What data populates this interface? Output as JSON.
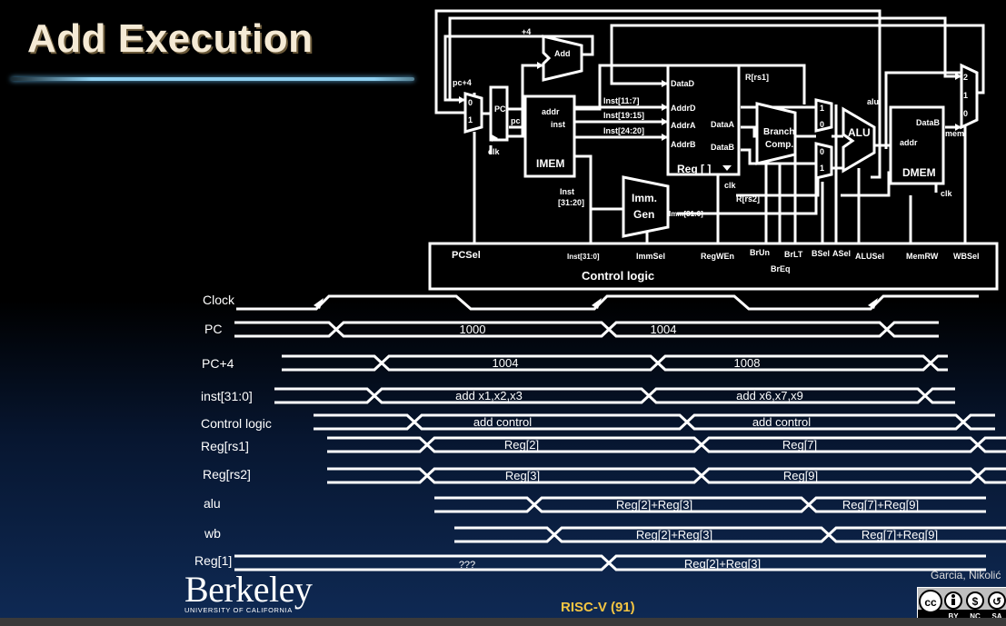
{
  "slide": {
    "title": "Add Execution",
    "footer_label": "RISC-V (91)",
    "author": "Garcia, Nikolić",
    "logo_word": "Berkeley",
    "logo_sub": "UNIVERSITY OF CALIFORNIA",
    "license_badge": [
      "cc",
      "BY",
      "NC",
      "SA"
    ]
  },
  "datapath": {
    "adder_plus4": "+4",
    "adder": "Add",
    "pc_plus4": "pc+4",
    "pc_reg": "PC",
    "pc_out": "pc",
    "clk": "clk",
    "imem": "IMEM",
    "addr": "addr",
    "inst": "inst",
    "inst_11_7": "Inst[11:7]",
    "inst_19_15": "Inst[19:15]",
    "inst_24_20": "Inst[24:20]",
    "inst_31_20_a": "Inst",
    "inst_31_20_b": "[31:20]",
    "imm_gen_a": "Imm.",
    "imm_gen_b": "Gen",
    "imm_out": "Imm[31:0]",
    "reg_file": "Reg [ ]",
    "data_d": "DataD",
    "addr_d": "AddrD",
    "addr_a": "AddrA",
    "addr_b": "AddrB",
    "data_a": "DataA",
    "data_b": "DataB",
    "r_rs1": "R[rs1]",
    "r_rs2": "R[rs2]",
    "branch_a": "Branch",
    "branch_b": "Comp.",
    "alu": "ALU",
    "alu_wire": "alu",
    "dmem": "DMEM",
    "dmem_addr": "addr",
    "dmem_datab": "DataB",
    "mem_wire": "mem",
    "mux_2": "2",
    "mux_1": "1",
    "mux_0": "0",
    "control_logic": "Control logic",
    "sig_pcsel": "PCSel",
    "sig_inst": "Inst[31:0]",
    "sig_immsel": "ImmSel",
    "sig_regwen": "RegWEn",
    "sig_brun": "BrUn",
    "sig_brlt": "BrLT",
    "sig_breq": "BrEq",
    "sig_bsel": "BSel",
    "sig_asel": "ASel",
    "sig_alusel": "ALUSel",
    "sig_memrw": "MemRW",
    "sig_wbsel": "WBSel"
  },
  "timing": {
    "clock_label": "Clock",
    "rows": [
      {
        "label": "PC",
        "values": [
          "1000",
          "1004"
        ]
      },
      {
        "label": "PC+4",
        "values": [
          "1004",
          "1008"
        ]
      },
      {
        "label": "inst[31:0]",
        "values": [
          "add x1,x2,x3",
          "add x6,x7,x9"
        ]
      },
      {
        "label": "Control logic",
        "values": [
          "add control",
          "add control"
        ]
      },
      {
        "label": "Reg[rs1]",
        "values": [
          "Reg[2]",
          "Reg[7]"
        ]
      },
      {
        "label": "Reg[rs2]",
        "values": [
          "Reg[3]",
          "Reg[9]"
        ]
      },
      {
        "label": "alu",
        "values": [
          "Reg[2]+Reg[3]",
          "Reg[7]+Reg[9]"
        ]
      },
      {
        "label": "wb",
        "values": [
          "Reg[2]+Reg[3]",
          "Reg[7]+Reg[9]"
        ]
      },
      {
        "label": "Reg[1]",
        "values": [
          "???",
          "Reg[2]+Reg[3]"
        ]
      }
    ]
  }
}
